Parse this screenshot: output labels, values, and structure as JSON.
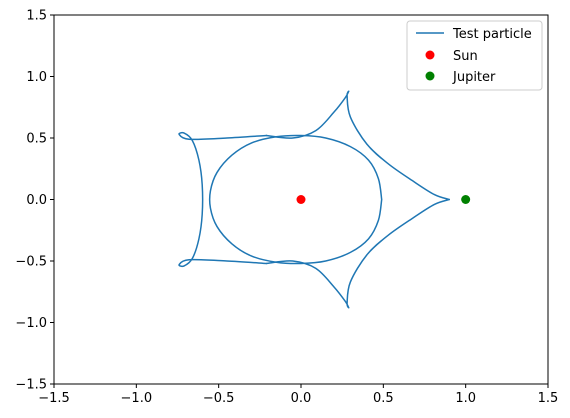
{
  "chart_data": {
    "type": "line",
    "title": "",
    "xlabel": "",
    "ylabel": "",
    "xlim": [
      -1.5,
      1.5
    ],
    "ylim": [
      -1.5,
      1.5
    ],
    "xticks": [
      -1.5,
      -1.0,
      -0.5,
      0.0,
      0.5,
      1.0,
      1.5
    ],
    "yticks": [
      -1.5,
      -1.0,
      -0.5,
      0.0,
      0.5,
      1.0,
      1.5
    ],
    "xtick_labels": [
      "−1.5",
      "−1.0",
      "−0.5",
      "0.0",
      "0.5",
      "1.0",
      "1.5"
    ],
    "ytick_labels": [
      "−1.5",
      "−1.0",
      "−0.5",
      "0.0",
      "0.5",
      "1.0",
      "1.5"
    ],
    "grid": false,
    "legend_position": "top-right",
    "series": [
      {
        "name": "Test particle",
        "kind": "line",
        "color": "#1f77b4",
        "segments": [
          [
            [
              0.49,
              0.0
            ],
            [
              0.47,
              0.17
            ],
            [
              0.41,
              0.32
            ],
            [
              0.3,
              0.43
            ],
            [
              0.15,
              0.5
            ],
            [
              0.0,
              0.52
            ],
            [
              -0.15,
              0.51
            ],
            [
              -0.3,
              0.46
            ],
            [
              -0.42,
              0.36
            ],
            [
              -0.51,
              0.22
            ],
            [
              -0.55,
              0.07
            ],
            [
              -0.55,
              -0.07
            ],
            [
              -0.51,
              -0.22
            ],
            [
              -0.42,
              -0.36
            ],
            [
              -0.3,
              -0.46
            ],
            [
              -0.15,
              -0.51
            ],
            [
              0.0,
              -0.52
            ],
            [
              0.15,
              -0.5
            ],
            [
              0.3,
              -0.43
            ],
            [
              0.41,
              -0.32
            ],
            [
              0.47,
              -0.17
            ],
            [
              0.49,
              0.0
            ]
          ],
          [
            [
              -0.21,
              0.52
            ],
            [
              -0.45,
              0.5
            ],
            [
              -0.68,
              0.49
            ],
            [
              -0.74,
              0.53
            ],
            [
              -0.71,
              0.54
            ],
            [
              -0.66,
              0.48
            ],
            [
              -0.62,
              0.32
            ],
            [
              -0.6,
              0.12
            ],
            [
              -0.6,
              -0.12
            ],
            [
              -0.62,
              -0.32
            ],
            [
              -0.66,
              -0.48
            ],
            [
              -0.71,
              -0.54
            ],
            [
              -0.74,
              -0.53
            ],
            [
              -0.68,
              -0.49
            ],
            [
              -0.45,
              -0.5
            ],
            [
              -0.21,
              -0.52
            ]
          ],
          [
            [
              -0.21,
              0.52
            ],
            [
              -0.05,
              0.5
            ],
            [
              0.09,
              0.56
            ],
            [
              0.2,
              0.71
            ],
            [
              0.27,
              0.83
            ],
            [
              0.29,
              0.88
            ],
            [
              0.28,
              0.84
            ],
            [
              0.3,
              0.67
            ],
            [
              0.4,
              0.45
            ],
            [
              0.53,
              0.29
            ],
            [
              0.68,
              0.15
            ],
            [
              0.81,
              0.04
            ],
            [
              0.9,
              0.0
            ]
          ],
          [
            [
              -0.21,
              -0.52
            ],
            [
              -0.05,
              -0.5
            ],
            [
              0.09,
              -0.56
            ],
            [
              0.2,
              -0.71
            ],
            [
              0.27,
              -0.83
            ],
            [
              0.29,
              -0.88
            ],
            [
              0.28,
              -0.84
            ],
            [
              0.3,
              -0.67
            ],
            [
              0.4,
              -0.45
            ],
            [
              0.53,
              -0.29
            ],
            [
              0.68,
              -0.15
            ],
            [
              0.81,
              -0.04
            ],
            [
              0.9,
              0.0
            ]
          ]
        ]
      },
      {
        "name": "Sun",
        "kind": "point",
        "color": "#ff0000",
        "x": 0.0,
        "y": 0.0
      },
      {
        "name": "Jupiter",
        "kind": "point",
        "color": "#008000",
        "x": 1.0,
        "y": 0.0
      }
    ]
  }
}
